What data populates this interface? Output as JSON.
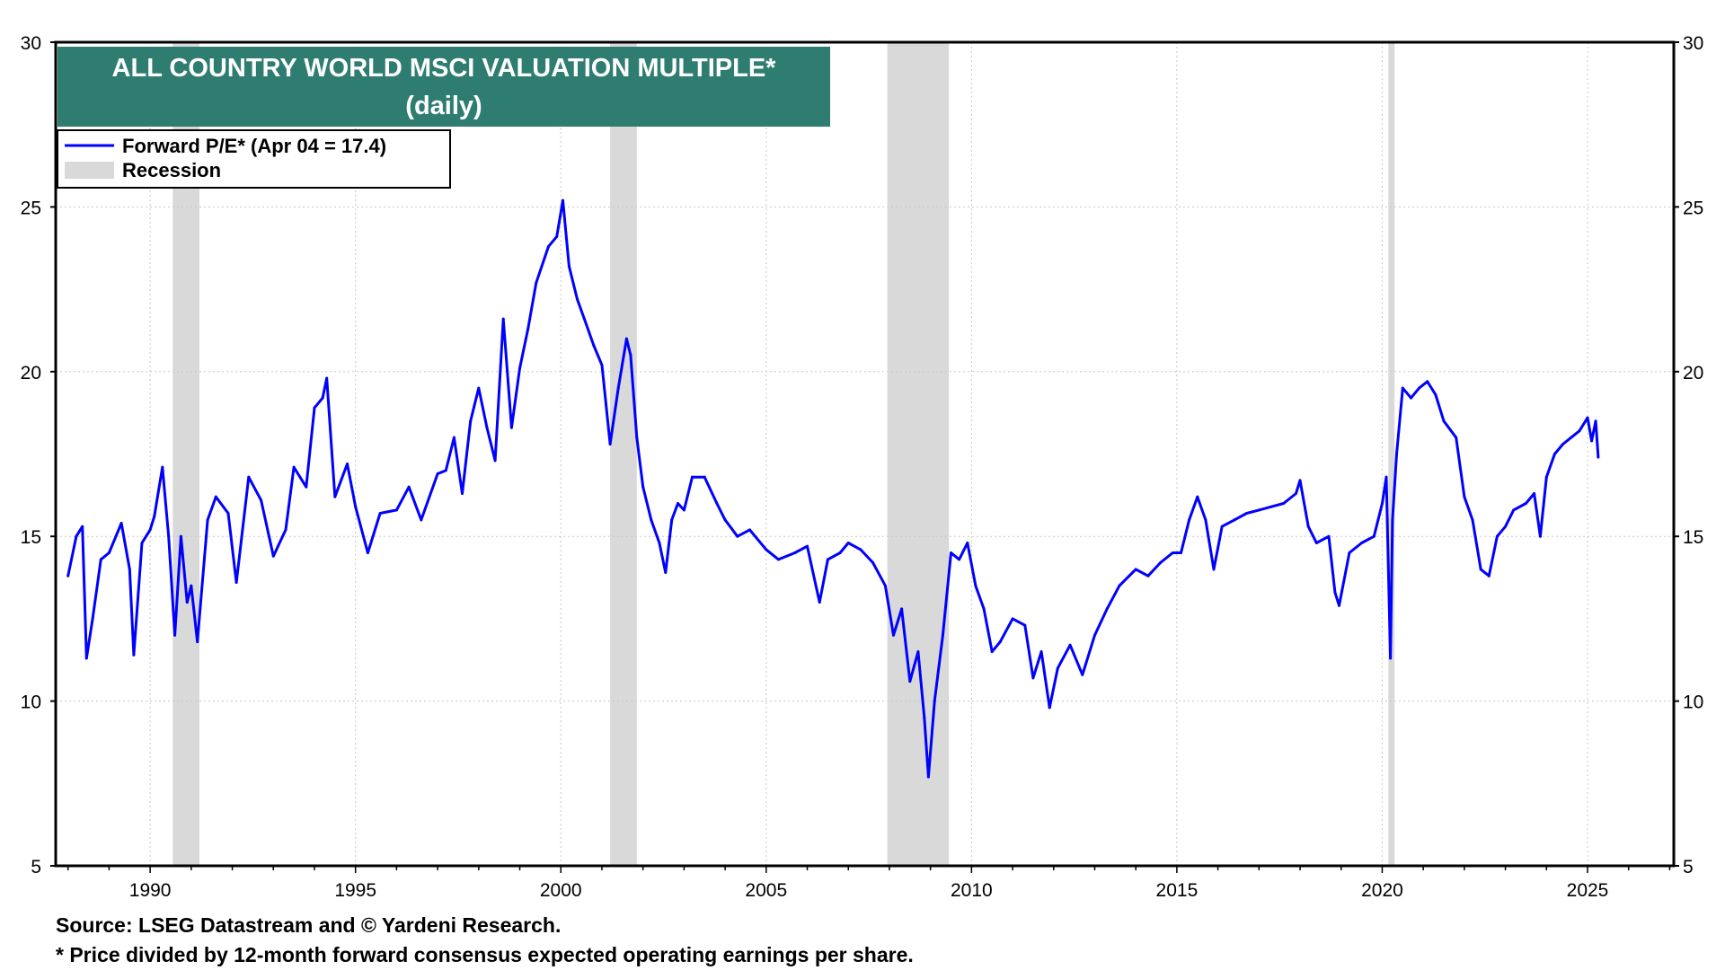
{
  "chart_data": {
    "type": "line",
    "title": "ALL COUNTRY WORLD MSCI VALUATION MULTIPLE*",
    "subtitle": "(daily)",
    "xlabel": "",
    "ylabel": "",
    "xlim": [
      1987.7,
      2027.1
    ],
    "ylim": [
      5,
      30
    ],
    "x_ticks": [
      1990,
      1995,
      2000,
      2005,
      2010,
      2015,
      2020,
      2025
    ],
    "y_ticks": [
      5,
      10,
      15,
      20,
      25,
      30
    ],
    "grid": true,
    "legend_position": "top-left",
    "legend": [
      {
        "label": "Forward P/E* (Apr 04 = 17.4)",
        "type": "line",
        "color": "#0000ff"
      },
      {
        "label": "Recession",
        "type": "band",
        "color": "#d9d9d9"
      }
    ],
    "recessions": [
      {
        "start": 1990.55,
        "end": 1991.2
      },
      {
        "start": 2001.2,
        "end": 2001.85
      },
      {
        "start": 2007.95,
        "end": 2009.45
      },
      {
        "start": 2020.15,
        "end": 2020.3
      }
    ],
    "series": [
      {
        "name": "Forward P/E* (Apr 04 = 17.4)",
        "color": "#0000ff",
        "x": [
          1988.0,
          1988.2,
          1988.35,
          1988.45,
          1988.6,
          1988.8,
          1989.0,
          1989.3,
          1989.5,
          1989.6,
          1989.8,
          1990.0,
          1990.1,
          1990.3,
          1990.45,
          1990.6,
          1990.75,
          1990.9,
          1991.0,
          1991.15,
          1991.4,
          1991.6,
          1991.9,
          1992.1,
          1992.4,
          1992.7,
          1993.0,
          1993.3,
          1993.5,
          1993.8,
          1994.0,
          1994.2,
          1994.3,
          1994.5,
          1994.8,
          1995.0,
          1995.3,
          1995.6,
          1996.0,
          1996.3,
          1996.6,
          1997.0,
          1997.2,
          1997.4,
          1997.6,
          1997.8,
          1998.0,
          1998.2,
          1998.4,
          1998.6,
          1998.8,
          1999.0,
          1999.2,
          1999.4,
          1999.7,
          1999.9,
          2000.05,
          2000.2,
          2000.4,
          2000.6,
          2000.8,
          2001.0,
          2001.2,
          2001.4,
          2001.6,
          2001.7,
          2001.85,
          2002.0,
          2002.2,
          2002.4,
          2002.55,
          2002.7,
          2002.85,
          2003.0,
          2003.2,
          2003.5,
          2003.8,
          2004.0,
          2004.3,
          2004.6,
          2005.0,
          2005.3,
          2005.7,
          2006.0,
          2006.3,
          2006.5,
          2006.8,
          2007.0,
          2007.3,
          2007.6,
          2007.9,
          2008.1,
          2008.3,
          2008.5,
          2008.7,
          2008.85,
          2008.95,
          2009.1,
          2009.3,
          2009.5,
          2009.7,
          2009.9,
          2010.1,
          2010.3,
          2010.5,
          2010.7,
          2011.0,
          2011.3,
          2011.5,
          2011.7,
          2011.9,
          2012.1,
          2012.4,
          2012.7,
          2013.0,
          2013.3,
          2013.6,
          2014.0,
          2014.3,
          2014.6,
          2014.9,
          2015.1,
          2015.3,
          2015.5,
          2015.7,
          2015.9,
          2016.1,
          2016.4,
          2016.7,
          2017.0,
          2017.3,
          2017.6,
          2017.9,
          2018.0,
          2018.2,
          2018.4,
          2018.7,
          2018.85,
          2018.95,
          2019.2,
          2019.5,
          2019.8,
          2020.0,
          2020.1,
          2020.2,
          2020.25,
          2020.35,
          2020.5,
          2020.7,
          2020.9,
          2021.1,
          2021.3,
          2021.5,
          2021.8,
          2022.0,
          2022.2,
          2022.4,
          2022.6,
          2022.8,
          2023.0,
          2023.2,
          2023.5,
          2023.7,
          2023.85,
          2024.0,
          2024.2,
          2024.4,
          2024.6,
          2024.8,
          2025.0,
          2025.1,
          2025.2,
          2025.26
        ],
        "values": [
          13.8,
          15.0,
          15.3,
          11.3,
          12.5,
          14.3,
          14.5,
          15.4,
          14.0,
          11.4,
          14.8,
          15.2,
          15.6,
          17.1,
          15.0,
          12.0,
          15.0,
          13.0,
          13.5,
          11.8,
          15.5,
          16.2,
          15.7,
          13.6,
          16.8,
          16.1,
          14.4,
          15.2,
          17.1,
          16.5,
          18.9,
          19.2,
          19.8,
          16.2,
          17.2,
          15.9,
          14.5,
          15.7,
          15.8,
          16.5,
          15.5,
          16.9,
          17.0,
          18.0,
          16.3,
          18.5,
          19.5,
          18.3,
          17.3,
          21.6,
          18.3,
          20.1,
          21.3,
          22.7,
          23.8,
          24.1,
          25.2,
          23.2,
          22.2,
          21.5,
          20.8,
          20.2,
          17.8,
          19.5,
          21.0,
          20.5,
          18.0,
          16.5,
          15.5,
          14.8,
          13.9,
          15.5,
          16.0,
          15.8,
          16.8,
          16.8,
          16.0,
          15.5,
          15.0,
          15.2,
          14.6,
          14.3,
          14.5,
          14.7,
          13.0,
          14.3,
          14.5,
          14.8,
          14.6,
          14.2,
          13.5,
          12.0,
          12.8,
          10.6,
          11.5,
          9.5,
          7.7,
          10.0,
          12.0,
          14.5,
          14.3,
          14.8,
          13.5,
          12.8,
          11.5,
          11.8,
          12.5,
          12.3,
          10.7,
          11.5,
          9.8,
          11.0,
          11.7,
          10.8,
          12.0,
          12.8,
          13.5,
          14.0,
          13.8,
          14.2,
          14.5,
          14.5,
          15.5,
          16.2,
          15.5,
          14.0,
          15.3,
          15.5,
          15.7,
          15.8,
          15.9,
          16.0,
          16.3,
          16.7,
          15.3,
          14.8,
          15.0,
          13.3,
          12.9,
          14.5,
          14.8,
          15.0,
          16.0,
          16.8,
          11.3,
          15.5,
          17.5,
          19.5,
          19.2,
          19.5,
          19.7,
          19.3,
          18.5,
          18.0,
          16.2,
          15.5,
          14.0,
          13.8,
          15.0,
          15.3,
          15.8,
          16.0,
          16.3,
          15.0,
          16.8,
          17.5,
          17.8,
          18.0,
          18.2,
          18.6,
          17.9,
          18.5,
          17.4
        ]
      }
    ]
  },
  "footnotes": {
    "source": "Source: LSEG Datastream and © Yardeni Research.",
    "note": "* Price divided by 12-month forward consensus expected operating earnings per share."
  },
  "colors": {
    "title_bg": "#2e7d70",
    "line": "#0000ff",
    "recession": "#d9d9d9",
    "grid": "#c8c8c8"
  }
}
